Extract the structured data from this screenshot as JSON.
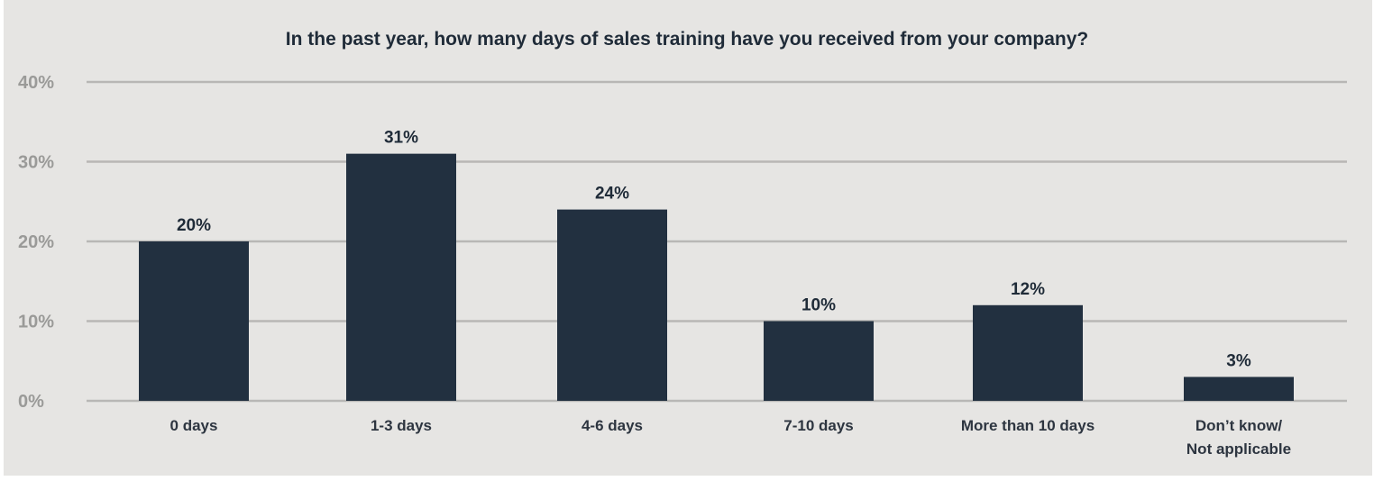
{
  "chart_data": {
    "type": "bar",
    "title": "In the past year, how many days of sales training have you received from your company?",
    "categories": [
      [
        "0 days"
      ],
      [
        "1-3 days"
      ],
      [
        "4-6 days"
      ],
      [
        "7-10 days"
      ],
      [
        "More than 10 days"
      ],
      [
        "Don’t know/",
        "Not applicable"
      ]
    ],
    "values": [
      20,
      31,
      24,
      10,
      12,
      3
    ],
    "value_labels": [
      "20%",
      "31%",
      "24%",
      "10%",
      "12%",
      "3%"
    ],
    "ylim": [
      0,
      40
    ],
    "yticks": [
      "0%",
      "10%",
      "20%",
      "30%",
      "40%"
    ],
    "grid": true,
    "colors": {
      "bar": "#223040",
      "background": "#e6e5e3",
      "grid": "#b8b7b5"
    }
  }
}
